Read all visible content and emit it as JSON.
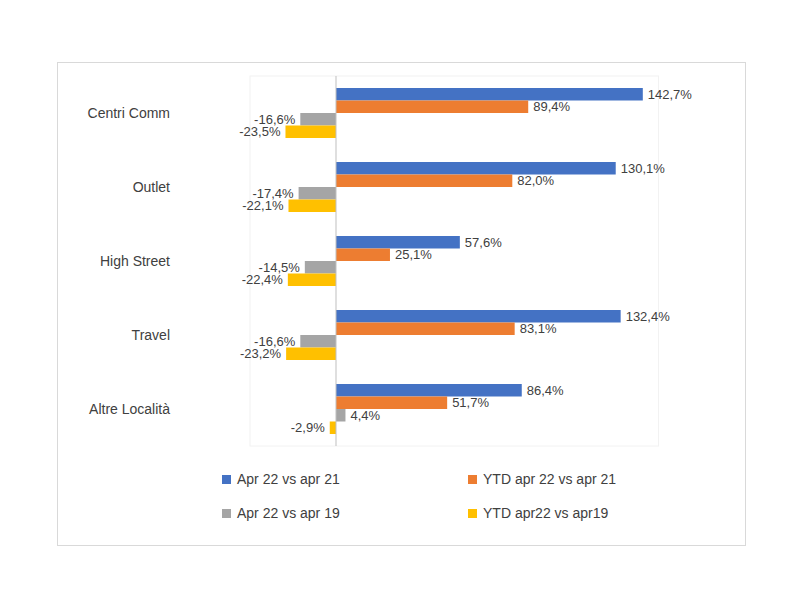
{
  "chart_data": {
    "type": "bar",
    "orientation": "horizontal",
    "categories": [
      "Centri Comm",
      "Outlet",
      "High Street",
      "Travel",
      "Altre Località"
    ],
    "series": [
      {
        "name": "Apr 22 vs apr 21",
        "color": "#4472c4",
        "values": [
          142.7,
          130.1,
          57.6,
          132.4,
          86.4
        ],
        "value_labels": [
          "142,7%",
          "130,1%",
          "57,6%",
          "132,4%",
          "86,4%"
        ]
      },
      {
        "name": "YTD apr 22 vs apr 21",
        "color": "#ed7d31",
        "values": [
          89.4,
          82.0,
          25.1,
          83.1,
          51.7
        ],
        "value_labels": [
          "89,4%",
          "82,0%",
          "25,1%",
          "83,1%",
          "51,7%"
        ]
      },
      {
        "name": "Apr 22 vs apr 19",
        "color": "#a5a5a5",
        "values": [
          -16.6,
          -17.4,
          -14.5,
          -16.6,
          4.4
        ],
        "value_labels": [
          "-16,6%",
          "-17,4%",
          "-14,5%",
          "-16,6%",
          "4,4%"
        ]
      },
      {
        "name": "YTD apr22 vs apr19",
        "color": "#ffc000",
        "values": [
          -23.5,
          -22.1,
          -22.4,
          -23.2,
          -2.9
        ],
        "value_labels": [
          "-23,5%",
          "-22,1%",
          "-22,4%",
          "-23,2%",
          "-2,9%"
        ]
      }
    ],
    "xlim": [
      -40,
      150
    ],
    "tick_labels": false,
    "data_labels": true,
    "grid": false,
    "legend": "bottom"
  }
}
